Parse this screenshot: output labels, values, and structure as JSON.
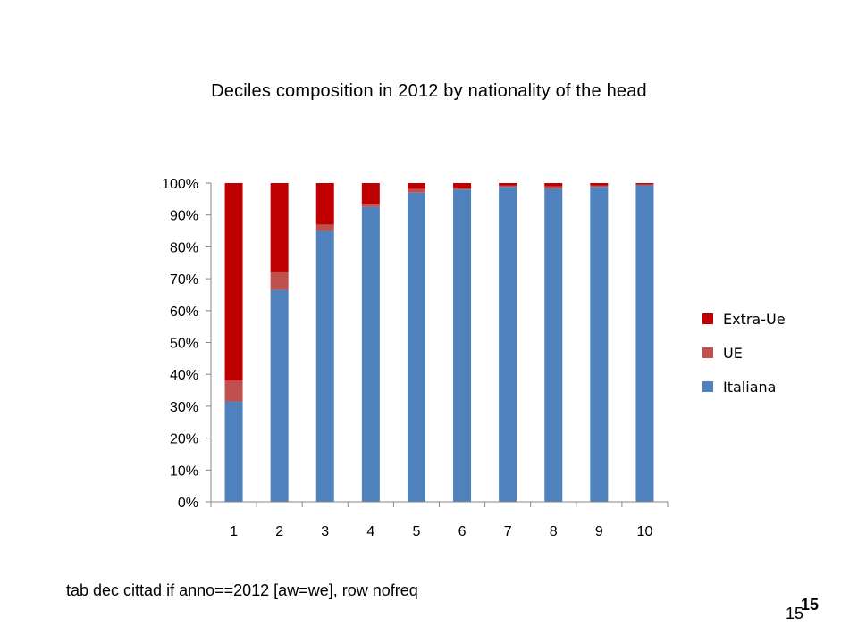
{
  "slide": {
    "title": "Deciles composition in 2012 by nationality of the head",
    "footnote": "tab dec cittad if anno==2012 [aw=we], row nofreq",
    "page_number": "15",
    "page_number_bold": "15"
  },
  "chart_data": {
    "type": "bar",
    "stacked": "percent",
    "title": "Deciles composition in 2012 by nationality of the head",
    "xlabel": "",
    "ylabel": "",
    "categories": [
      "1",
      "2",
      "3",
      "4",
      "5",
      "6",
      "7",
      "8",
      "9",
      "10"
    ],
    "series": [
      {
        "name": "Italiana",
        "color": "#4f81bd",
        "values": [
          31.5,
          66.5,
          85,
          92.5,
          97,
          98,
          98.8,
          98.3,
          98.8,
          99.3
        ]
      },
      {
        "name": "UE",
        "color": "#c0504d",
        "values": [
          6.5,
          5.5,
          2,
          1,
          1.2,
          0.5,
          0.4,
          0.7,
          0.4,
          0.3
        ]
      },
      {
        "name": "Extra-Ue",
        "color": "#c00000",
        "values": [
          62,
          28,
          13,
          6.5,
          1.8,
          1.5,
          0.8,
          1.0,
          0.8,
          0.4
        ]
      }
    ],
    "yticks": [
      "0%",
      "10%",
      "20%",
      "30%",
      "40%",
      "50%",
      "60%",
      "70%",
      "80%",
      "90%",
      "100%"
    ],
    "ylim": [
      0,
      100
    ],
    "legend": {
      "placement": "right",
      "order": [
        "Extra-Ue",
        "UE",
        "Italiana"
      ]
    },
    "grid": false
  }
}
